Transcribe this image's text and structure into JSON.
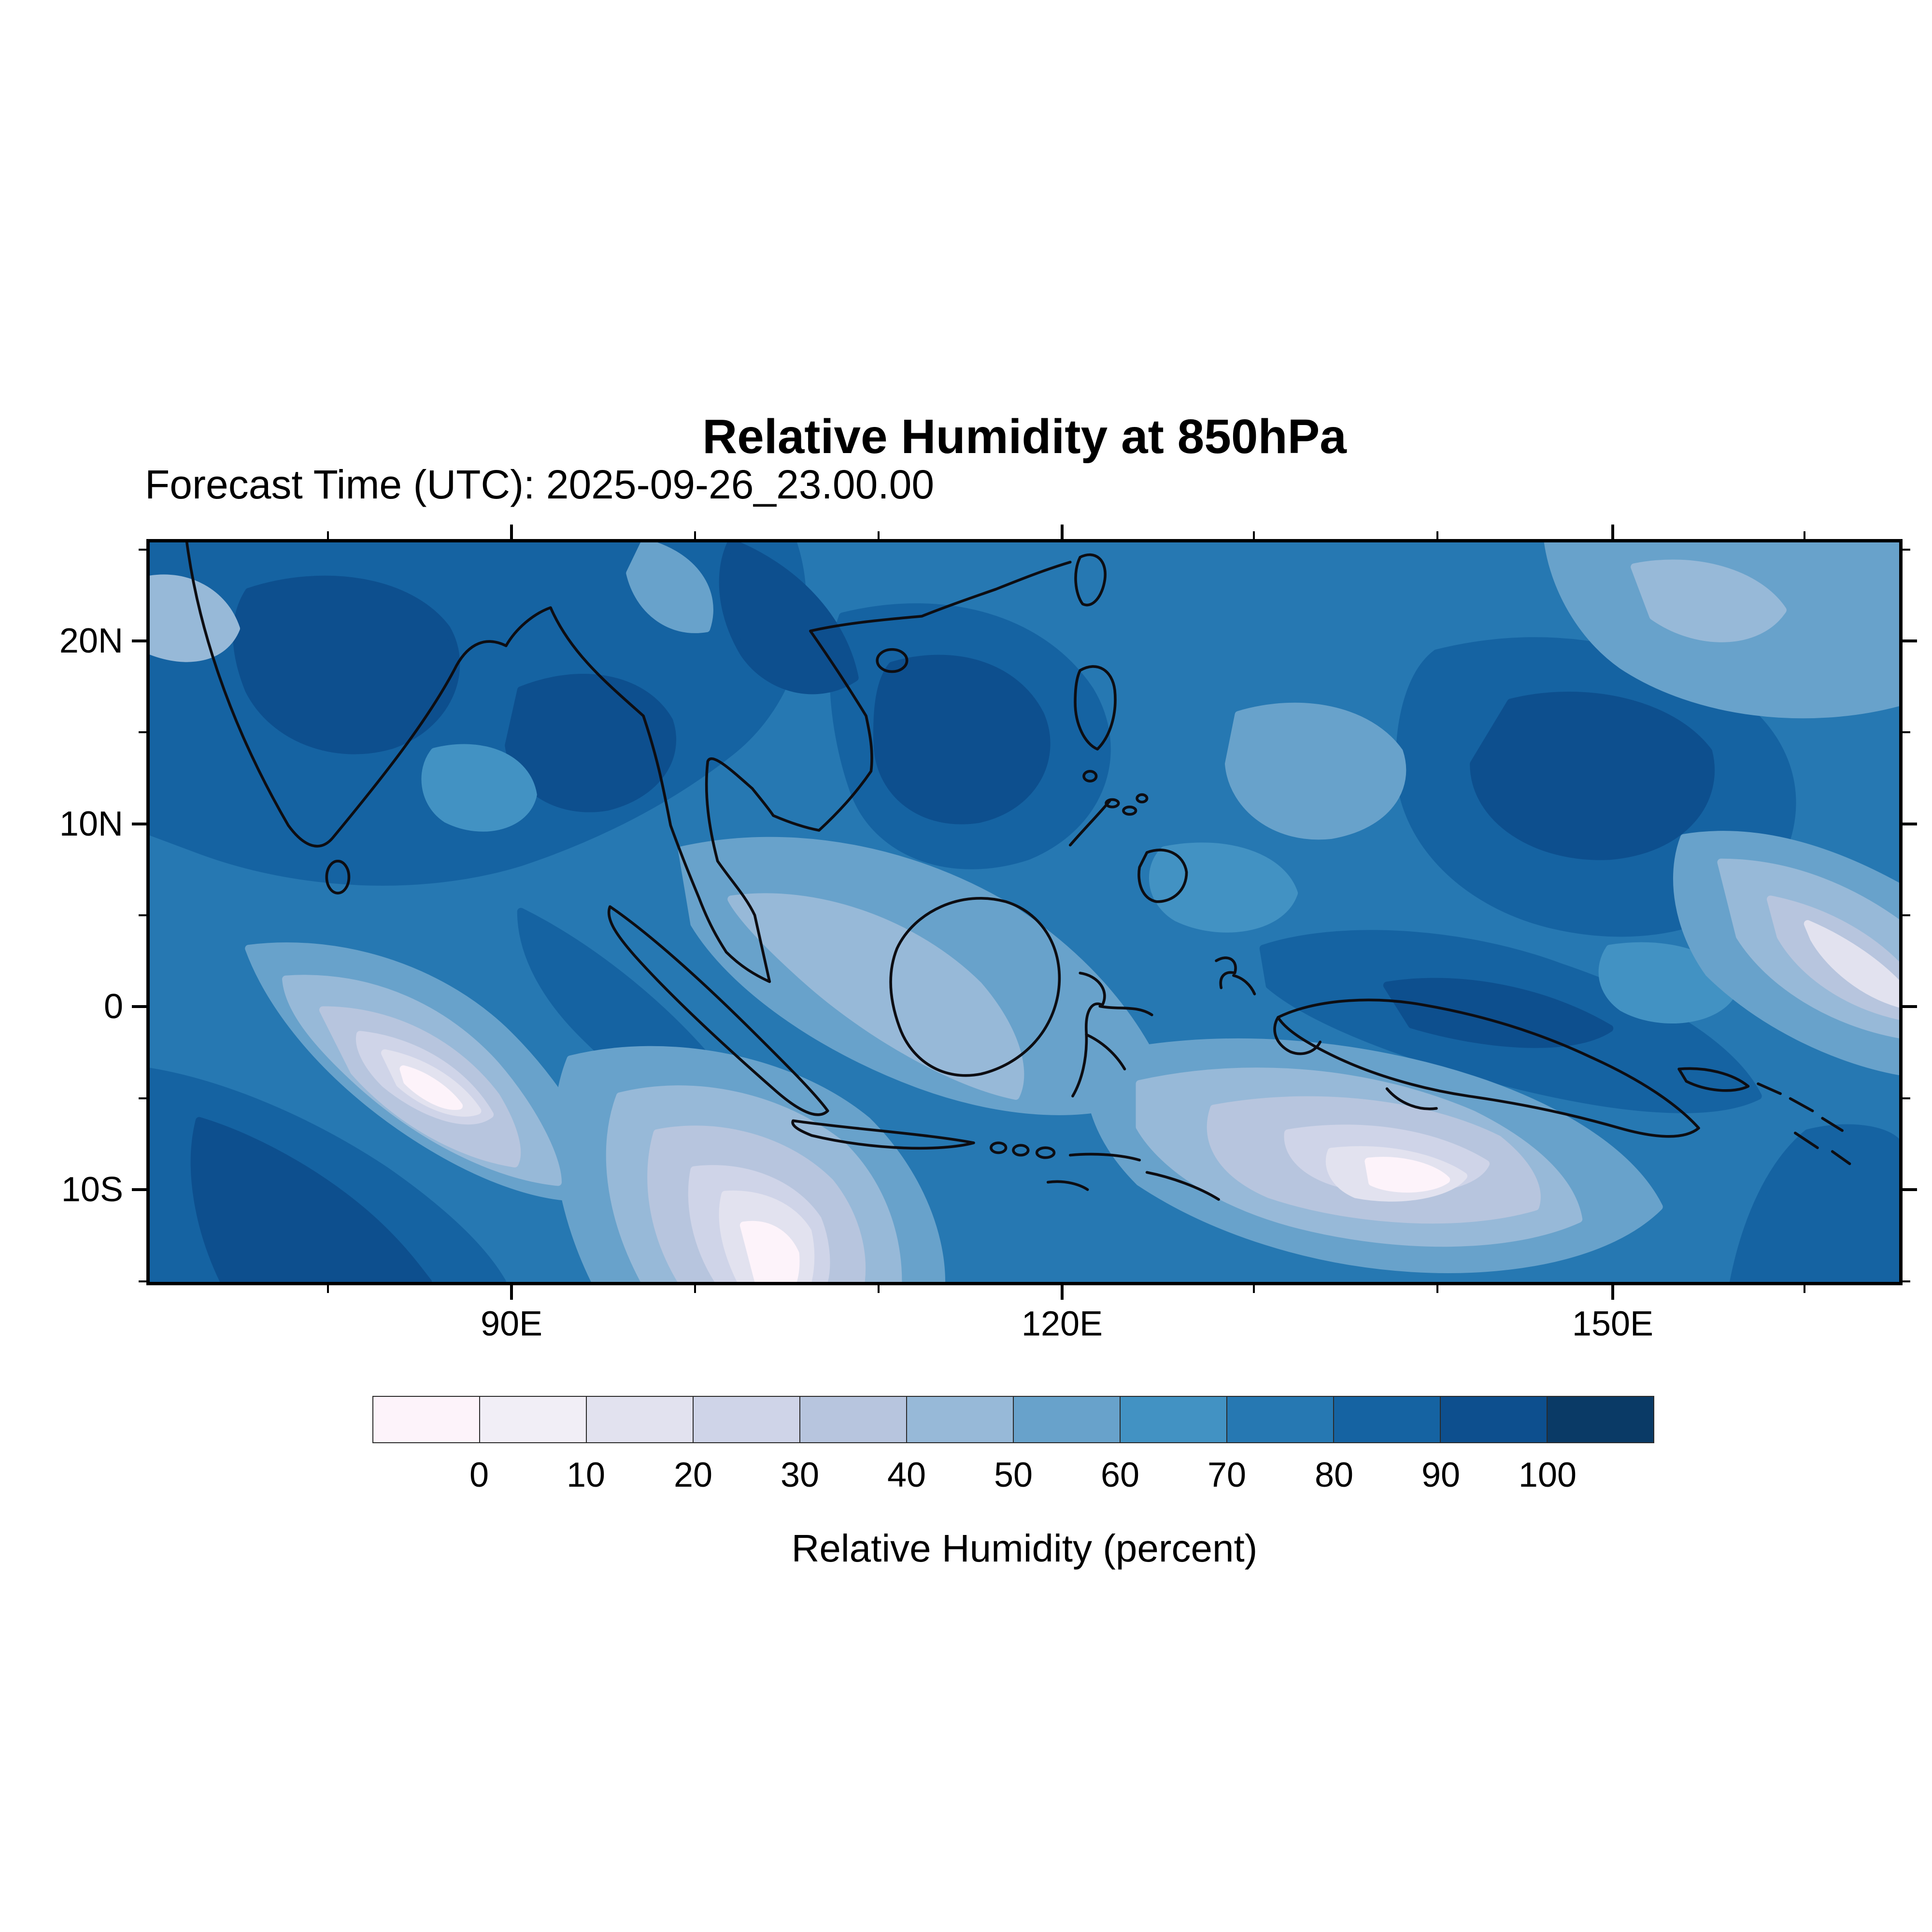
{
  "chart_data": {
    "type": "heatmap",
    "title": "Relative Humidity at 850hPa",
    "subtitle": "Forecast Time (UTC): 2025-09-26_23.00.00",
    "field": "Relative Humidity",
    "level": "850hPa",
    "ytick_labels": [
      "20N",
      "10N",
      "0",
      "10S"
    ],
    "xtick_labels": [
      "90E",
      "120E",
      "150E"
    ],
    "colorbar": {
      "label": "Relative Humidity (percent)",
      "tick_labels": [
        "0",
        "10",
        "20",
        "30",
        "40",
        "50",
        "60",
        "70",
        "80",
        "90",
        "100"
      ],
      "colors": [
        "#fdf3fa",
        "#f1eef6",
        "#e2e2ef",
        "#cfd4e8",
        "#b7c5de",
        "#97b9d8",
        "#68a2cb",
        "#4292c3",
        "#2678b2",
        "#1563a2",
        "#0d4f8e",
        "#0a3a66"
      ],
      "units": "percent",
      "orientation": "horizontal"
    },
    "map_base_color": "#2678b2",
    "coastline_color": "#0d0d12",
    "grid": false,
    "legend_position": "bottom"
  }
}
